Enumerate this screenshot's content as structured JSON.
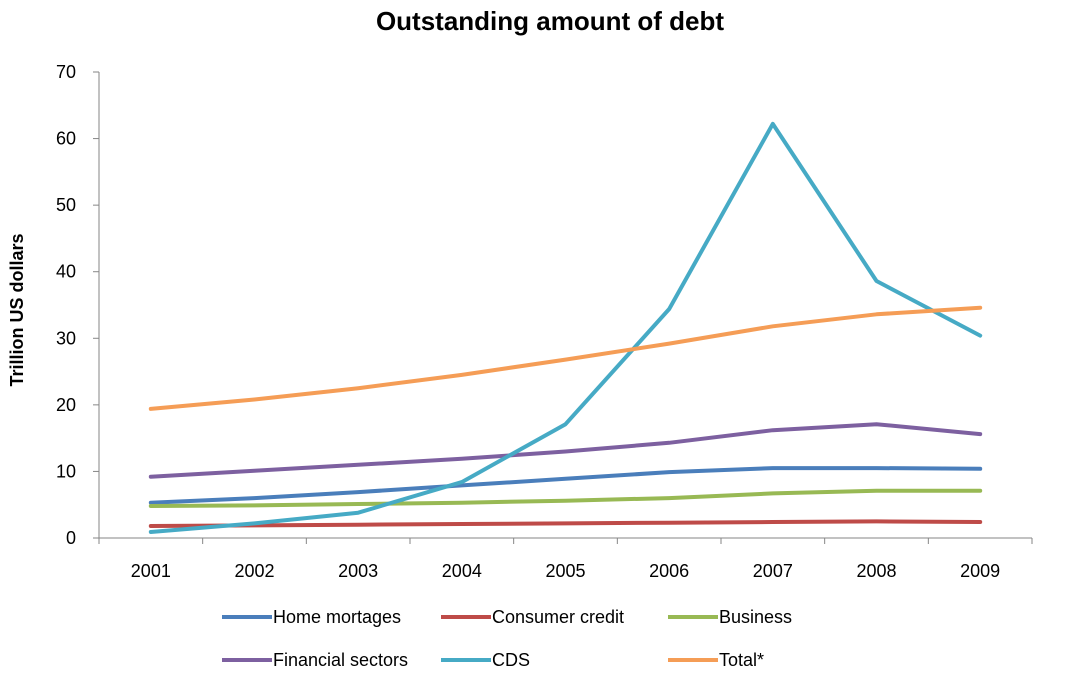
{
  "chart_data": {
    "type": "line",
    "title": "Outstanding amount of debt",
    "xlabel": "",
    "ylabel": "Trillion US dollars",
    "x": [
      "2001",
      "2002",
      "2003",
      "2004",
      "2005",
      "2006",
      "2007",
      "2008",
      "2009"
    ],
    "yticks": [
      "0",
      "10",
      "20",
      "30",
      "40",
      "50",
      "60",
      "70"
    ],
    "ylim": [
      0,
      70
    ],
    "grid": false,
    "legend_position": "bottom",
    "series": [
      {
        "name": "Home mortages",
        "color": "#4a7ebb",
        "values": [
          5.3,
          6.0,
          6.9,
          7.9,
          8.9,
          9.9,
          10.5,
          10.5,
          10.4
        ]
      },
      {
        "name": "Consumer credit",
        "color": "#be4b48",
        "values": [
          1.8,
          1.9,
          2.0,
          2.1,
          2.2,
          2.3,
          2.4,
          2.5,
          2.4
        ]
      },
      {
        "name": "Business",
        "color": "#98b954",
        "values": [
          4.8,
          4.9,
          5.1,
          5.3,
          5.6,
          6.0,
          6.7,
          7.1,
          7.1
        ]
      },
      {
        "name": "Financial sectors",
        "color": "#7d60a0",
        "values": [
          9.2,
          10.1,
          11.0,
          11.9,
          13.0,
          14.3,
          16.2,
          17.1,
          15.6
        ]
      },
      {
        "name": "CDS",
        "color": "#46aac5",
        "values": [
          0.9,
          2.2,
          3.8,
          8.4,
          17.1,
          34.4,
          62.2,
          38.6,
          30.4
        ]
      },
      {
        "name": "Total*",
        "color": "#f59d56",
        "values": [
          19.4,
          20.8,
          22.5,
          24.5,
          26.8,
          29.2,
          31.8,
          33.6,
          34.6
        ]
      }
    ]
  }
}
